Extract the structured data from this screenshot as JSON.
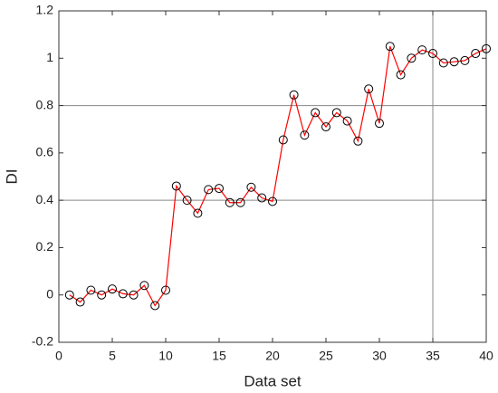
{
  "chart_data": {
    "type": "line",
    "xlabel": "Data set",
    "ylabel": "DI",
    "x": [
      1,
      2,
      3,
      4,
      5,
      6,
      7,
      8,
      9,
      10,
      11,
      12,
      13,
      14,
      15,
      16,
      17,
      18,
      19,
      20,
      21,
      22,
      23,
      24,
      25,
      26,
      27,
      28,
      29,
      30,
      31,
      32,
      33,
      34,
      35,
      36,
      37,
      38,
      39,
      40
    ],
    "series": [
      {
        "color": "#ff0000",
        "marker_color": "#000000",
        "values": [
          0.0,
          -0.03,
          0.02,
          0.0,
          0.025,
          0.005,
          0.0,
          0.04,
          -0.045,
          0.02,
          0.46,
          0.4,
          0.345,
          0.445,
          0.45,
          0.39,
          0.39,
          0.455,
          0.41,
          0.395,
          0.655,
          0.845,
          0.675,
          0.77,
          0.71,
          0.77,
          0.735,
          0.65,
          0.87,
          0.725,
          1.05,
          0.93,
          1.0,
          1.035,
          1.02,
          0.98,
          0.985,
          0.99,
          1.02,
          1.04
        ]
      }
    ],
    "xlim": [
      0,
      40
    ],
    "xticks": [
      0,
      5,
      10,
      15,
      20,
      25,
      30,
      35,
      40
    ],
    "ylim": [
      -0.2,
      1.2
    ],
    "yticks": [
      -0.2,
      0,
      0.2,
      0.4,
      0.6,
      0.8,
      1,
      1.2
    ],
    "hlines": [
      0.4,
      0.8
    ],
    "vlines": [
      35
    ]
  }
}
